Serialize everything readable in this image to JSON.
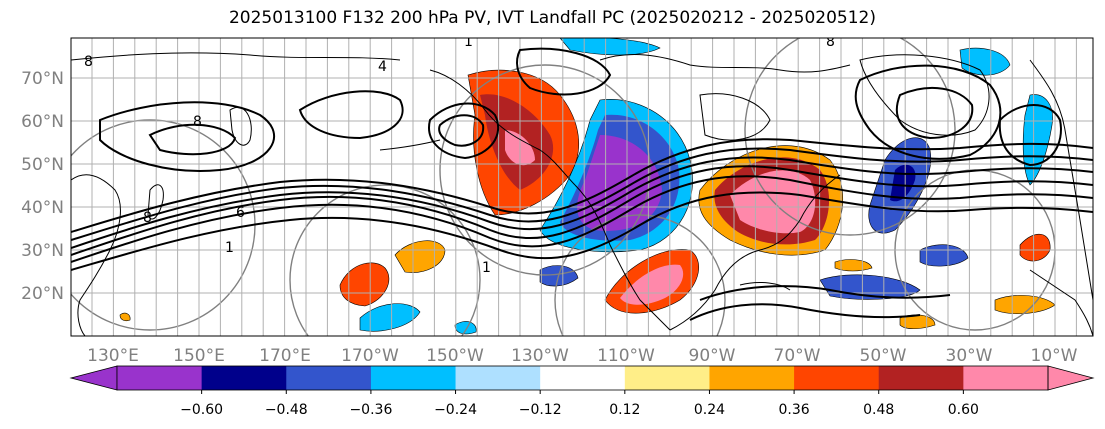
{
  "title": "2025013100 F132 200 hPa PV, IVT Landfall PC (2025020212 - 2025020512)",
  "map": {
    "lat_labels": [
      "70°N",
      "60°N",
      "50°N",
      "40°N",
      "30°N",
      "20°N"
    ],
    "lon_labels": [
      "130°E",
      "150°E",
      "170°E",
      "170°W",
      "150°W",
      "130°W",
      "110°W",
      "90°W",
      "70°W",
      "50°W",
      "30°W",
      "10°W"
    ],
    "contour_labels": [
      "1",
      "1",
      "6",
      "8",
      "8",
      "4",
      "1",
      "8",
      "8"
    ],
    "colors": {
      "land_line": "#000000",
      "grid": "#b0b0b0",
      "pv_contour": "#000000",
      "ivt_contour": "#808080"
    }
  },
  "colorbar": {
    "colors": [
      "#9933cc",
      "#00008b",
      "#3355cc",
      "#00bfff",
      "#aee0ff",
      "#ffffff",
      "#ffee88",
      "#ffa500",
      "#ff4500",
      "#b22222",
      "#ff88aa"
    ],
    "tick_labels": [
      "−0.60",
      "−0.48",
      "−0.36",
      "−0.24",
      "−0.12",
      "0.12",
      "0.24",
      "0.36",
      "0.48",
      "0.60"
    ]
  }
}
